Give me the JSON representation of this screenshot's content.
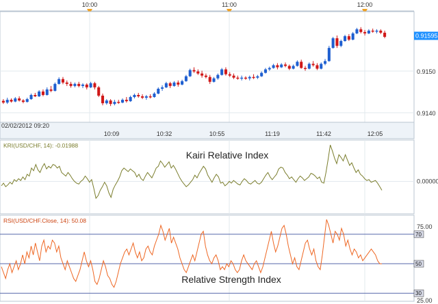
{
  "chart_data": [
    {
      "type": "candlestick",
      "instrument": "USD/CHF",
      "top_time_labels": [
        "10:00",
        "11:00",
        "12:00"
      ],
      "x_tick_labels": [
        "02/02/2012 09:20",
        "10:09",
        "10:32",
        "10:55",
        "11:19",
        "11:42",
        "12:05"
      ],
      "y_tick_labels": [
        "0.9150",
        "0.9140"
      ],
      "y_range": [
        0.91345,
        0.91665
      ],
      "last_price_label": "0.91595",
      "last_price": 0.91595,
      "colors": {
        "up": "#1f5fd0",
        "down": "#d01818",
        "price_marker": "#1e90ff",
        "time_marker": "#f0a020"
      },
      "candles": [
        [
          0.91407,
          0.91412,
          0.91398,
          0.91402
        ],
        [
          0.91402,
          0.91416,
          0.91398,
          0.9141
        ],
        [
          0.9141,
          0.91414,
          0.91402,
          0.91405
        ],
        [
          0.91405,
          0.91418,
          0.91403,
          0.91414
        ],
        [
          0.91414,
          0.9142,
          0.91405,
          0.91408
        ],
        [
          0.91408,
          0.91412,
          0.914,
          0.91404
        ],
        [
          0.91404,
          0.91416,
          0.91402,
          0.91412
        ],
        [
          0.91412,
          0.91428,
          0.9141,
          0.91424
        ],
        [
          0.91424,
          0.9143,
          0.91418,
          0.9142
        ],
        [
          0.9142,
          0.91438,
          0.91418,
          0.91434
        ],
        [
          0.91434,
          0.9144,
          0.9142,
          0.91424
        ],
        [
          0.91424,
          0.91446,
          0.91422,
          0.9144
        ],
        [
          0.9144,
          0.9145,
          0.91432,
          0.91436
        ],
        [
          0.91436,
          0.9146,
          0.91434,
          0.91456
        ],
        [
          0.91456,
          0.91475,
          0.91454,
          0.9147
        ],
        [
          0.9147,
          0.91476,
          0.91455,
          0.9146
        ],
        [
          0.9146,
          0.91466,
          0.9145,
          0.91456
        ],
        [
          0.91456,
          0.91462,
          0.91445,
          0.9145
        ],
        [
          0.9145,
          0.9146,
          0.91446,
          0.91456
        ],
        [
          0.91456,
          0.91462,
          0.91446,
          0.9145
        ],
        [
          0.9145,
          0.91458,
          0.91444,
          0.91454
        ],
        [
          0.91454,
          0.91458,
          0.9144,
          0.91446
        ],
        [
          0.91446,
          0.91462,
          0.91444,
          0.91458
        ],
        [
          0.91458,
          0.91462,
          0.9144,
          0.91446
        ],
        [
          0.91446,
          0.9145,
          0.91418,
          0.91422
        ],
        [
          0.91422,
          0.91428,
          0.91394,
          0.914
        ],
        [
          0.914,
          0.91412,
          0.91396,
          0.91408
        ],
        [
          0.91408,
          0.91412,
          0.91392,
          0.91398
        ],
        [
          0.91398,
          0.9141,
          0.91394,
          0.91404
        ],
        [
          0.91404,
          0.9141,
          0.91398,
          0.91402
        ],
        [
          0.91402,
          0.91414,
          0.914,
          0.9141
        ],
        [
          0.9141,
          0.91418,
          0.91402,
          0.91406
        ],
        [
          0.91406,
          0.91422,
          0.91404,
          0.91418
        ],
        [
          0.91418,
          0.91428,
          0.91414,
          0.91424
        ],
        [
          0.91424,
          0.9143,
          0.91416,
          0.9142
        ],
        [
          0.9142,
          0.91426,
          0.91412,
          0.91416
        ],
        [
          0.91416,
          0.91424,
          0.9141,
          0.9142
        ],
        [
          0.9142,
          0.91426,
          0.91414,
          0.91418
        ],
        [
          0.91418,
          0.91432,
          0.91416,
          0.91428
        ],
        [
          0.91428,
          0.91446,
          0.91426,
          0.91442
        ],
        [
          0.91442,
          0.91452,
          0.91436,
          0.91446
        ],
        [
          0.91446,
          0.91462,
          0.91444,
          0.91458
        ],
        [
          0.91458,
          0.91462,
          0.91444,
          0.9145
        ],
        [
          0.9145,
          0.91464,
          0.91448,
          0.9146
        ],
        [
          0.9146,
          0.91466,
          0.91448,
          0.91454
        ],
        [
          0.91454,
          0.91468,
          0.91452,
          0.91464
        ],
        [
          0.91464,
          0.91482,
          0.91462,
          0.91478
        ],
        [
          0.91478,
          0.915,
          0.91476,
          0.91496
        ],
        [
          0.91496,
          0.91504,
          0.91488,
          0.91492
        ],
        [
          0.91492,
          0.91498,
          0.91482,
          0.91486
        ],
        [
          0.91486,
          0.91494,
          0.91474,
          0.9148
        ],
        [
          0.9148,
          0.91486,
          0.91472,
          0.91476
        ],
        [
          0.91476,
          0.91482,
          0.91456,
          0.91462
        ],
        [
          0.91462,
          0.91476,
          0.9146,
          0.91472
        ],
        [
          0.91472,
          0.91486,
          0.91468,
          0.91482
        ],
        [
          0.91482,
          0.91502,
          0.9148,
          0.91498
        ],
        [
          0.91498,
          0.91504,
          0.9148,
          0.91484
        ],
        [
          0.91484,
          0.9149,
          0.91476,
          0.9148
        ],
        [
          0.9148,
          0.91486,
          0.9147,
          0.91474
        ],
        [
          0.91474,
          0.9148,
          0.91468,
          0.91472
        ],
        [
          0.91472,
          0.9148,
          0.91466,
          0.91474
        ],
        [
          0.91474,
          0.91478,
          0.91468,
          0.91472
        ],
        [
          0.91472,
          0.9148,
          0.91466,
          0.91476
        ],
        [
          0.91476,
          0.91484,
          0.9147,
          0.91474
        ],
        [
          0.91474,
          0.91482,
          0.9147,
          0.91478
        ],
        [
          0.91478,
          0.91492,
          0.91476,
          0.91488
        ],
        [
          0.91488,
          0.91502,
          0.91486,
          0.91498
        ],
        [
          0.91498,
          0.91506,
          0.91494,
          0.91502
        ],
        [
          0.91502,
          0.91514,
          0.915,
          0.9151
        ],
        [
          0.9151,
          0.91516,
          0.91498,
          0.91504
        ],
        [
          0.91504,
          0.91516,
          0.91502,
          0.91512
        ],
        [
          0.91512,
          0.91518,
          0.91504,
          0.91508
        ],
        [
          0.91508,
          0.91512,
          0.91496,
          0.915
        ],
        [
          0.915,
          0.91512,
          0.91498,
          0.91508
        ],
        [
          0.91508,
          0.91524,
          0.91506,
          0.9152
        ],
        [
          0.9152,
          0.91526,
          0.915,
          0.91502
        ],
        [
          0.91502,
          0.91508,
          0.91494,
          0.915
        ],
        [
          0.915,
          0.91518,
          0.91498,
          0.91514
        ],
        [
          0.91514,
          0.91522,
          0.91506,
          0.9151
        ],
        [
          0.9151,
          0.91516,
          0.91496,
          0.915
        ],
        [
          0.915,
          0.91518,
          0.91498,
          0.91514
        ],
        [
          0.91514,
          0.91528,
          0.9151,
          0.91522
        ],
        [
          0.91522,
          0.91566,
          0.9152,
          0.9156
        ],
        [
          0.9156,
          0.91592,
          0.91558,
          0.91588
        ],
        [
          0.91588,
          0.91596,
          0.9156,
          0.91566
        ],
        [
          0.91566,
          0.91584,
          0.91562,
          0.9158
        ],
        [
          0.9158,
          0.91598,
          0.91578,
          0.91594
        ],
        [
          0.91594,
          0.916,
          0.9158,
          0.91584
        ],
        [
          0.91584,
          0.91606,
          0.91582,
          0.91602
        ],
        [
          0.91602,
          0.91618,
          0.916,
          0.91614
        ],
        [
          0.91614,
          0.9162,
          0.91602,
          0.91606
        ],
        [
          0.91606,
          0.91612,
          0.91596,
          0.91602
        ],
        [
          0.91602,
          0.91614,
          0.916,
          0.9161
        ],
        [
          0.9161,
          0.91616,
          0.91604,
          0.91608
        ],
        [
          0.91608,
          0.91614,
          0.91602,
          0.9161
        ],
        [
          0.9161,
          0.91614,
          0.916,
          0.91604
        ],
        [
          0.91604,
          0.9161,
          0.91588,
          0.91592
        ]
      ]
    },
    {
      "type": "line",
      "title": "Kairi Relative Index",
      "legend": "KRI(USD/CHF, 14): -0.01988",
      "y_tick_labels": [
        "0.00000"
      ],
      "y_range": [
        -0.07,
        0.09
      ],
      "zero_value": 0.0,
      "color": "#7a7d2c",
      "values": [
        -0.01,
        -0.004,
        -0.012,
        -0.008,
        -0.002,
        -0.006,
        0.004,
        0.0,
        0.006,
        0.002,
        0.01,
        0.004,
        0.016,
        0.012,
        0.03,
        0.024,
        0.038,
        0.026,
        0.02,
        0.032,
        0.04,
        0.028,
        0.034,
        0.03,
        0.038,
        0.036,
        0.03,
        0.034,
        0.02,
        0.016,
        0.012,
        0.02,
        0.014,
        0.006,
        0.0,
        -0.004,
        -0.006,
        0.0,
        0.004,
        0.012,
        0.006,
        -0.002,
        0.004,
        -0.016,
        -0.038,
        -0.032,
        -0.02,
        -0.012,
        -0.002,
        -0.01,
        -0.026,
        -0.036,
        -0.018,
        -0.008,
        0.0,
        0.01,
        0.024,
        0.03,
        0.026,
        0.022,
        0.028,
        0.024,
        0.02,
        0.01,
        0.016,
        0.006,
        0.002,
        0.012,
        0.02,
        0.014,
        0.008,
        0.018,
        0.03,
        0.034,
        0.046,
        0.04,
        0.032,
        0.038,
        0.044,
        0.03,
        0.036,
        0.028,
        0.018,
        0.008,
        0.0,
        -0.006,
        -0.012,
        -0.008,
        -0.002,
        0.004,
        0.014,
        0.008,
        0.018,
        0.026,
        0.034,
        0.028,
        0.014,
        0.006,
        -0.002,
        0.008,
        0.016,
        0.01,
        -0.004,
        -0.002,
        -0.01,
        -0.006,
        0.0,
        -0.004,
        0.002,
        -0.002,
        -0.006,
        -0.008,
        0.0,
        0.006,
        0.002,
        -0.004,
        -0.006,
        -0.002,
        0.002,
        -0.004,
        -0.006,
        -0.002,
        0.006,
        0.014,
        0.02,
        0.01,
        0.004,
        0.01,
        0.016,
        0.028,
        0.032,
        0.03,
        0.02,
        0.014,
        0.006,
        0.01,
        0.004,
        -0.002,
        0.006,
        0.012,
        0.008,
        0.002,
        0.006,
        0.01,
        0.018,
        0.016,
        0.012,
        0.006,
        0.01,
        -0.002,
        -0.004,
        0.02,
        0.05,
        0.082,
        0.068,
        0.052,
        0.04,
        0.06,
        0.054,
        0.046,
        0.06,
        0.048,
        0.036,
        0.042,
        0.03,
        0.02,
        0.026,
        0.016,
        0.012,
        0.006,
        0.002,
        0.004,
        -0.002,
        0.0,
        0.002,
        -0.004,
        -0.012,
        -0.02
      ]
    },
    {
      "type": "line",
      "title": "Relative Strength Index",
      "legend": "RSI(USD/CHF.Close, 14): 50.08",
      "y_tick_labels": [
        "75.00",
        "25.00"
      ],
      "y_range": [
        25,
        82
      ],
      "level_labels": [
        "70",
        "50",
        "30"
      ],
      "levels": [
        70,
        50,
        30
      ],
      "color": "#ee6622",
      "values": [
        48,
        44,
        40,
        46,
        50,
        44,
        48,
        52,
        46,
        50,
        56,
        50,
        58,
        54,
        62,
        56,
        64,
        58,
        52,
        62,
        66,
        58,
        62,
        60,
        66,
        64,
        58,
        62,
        54,
        50,
        46,
        52,
        48,
        44,
        40,
        38,
        42,
        46,
        52,
        58,
        52,
        48,
        52,
        46,
        38,
        36,
        40,
        46,
        52,
        48,
        42,
        40,
        36,
        34,
        38,
        44,
        50,
        54,
        58,
        60,
        56,
        60,
        64,
        58,
        54,
        58,
        52,
        54,
        60,
        62,
        58,
        56,
        62,
        66,
        70,
        76,
        72,
        66,
        70,
        74,
        64,
        68,
        64,
        60,
        54,
        50,
        46,
        44,
        48,
        52,
        56,
        52,
        58,
        64,
        70,
        72,
        62,
        56,
        52,
        50,
        54,
        56,
        52,
        46,
        48,
        46,
        50,
        48,
        52,
        50,
        46,
        44,
        46,
        52,
        56,
        52,
        50,
        48,
        46,
        50,
        52,
        48,
        44,
        48,
        54,
        60,
        66,
        72,
        64,
        58,
        62,
        68,
        74,
        76,
        70,
        62,
        56,
        50,
        54,
        48,
        46,
        52,
        58,
        64,
        66,
        60,
        56,
        60,
        52,
        48,
        46,
        56,
        68,
        80,
        76,
        70,
        64,
        72,
        70,
        66,
        74,
        70,
        62,
        66,
        60,
        56,
        60,
        58,
        54,
        56,
        52,
        54,
        56,
        58,
        60,
        58,
        56,
        52,
        50,
        50
      ]
    }
  ]
}
